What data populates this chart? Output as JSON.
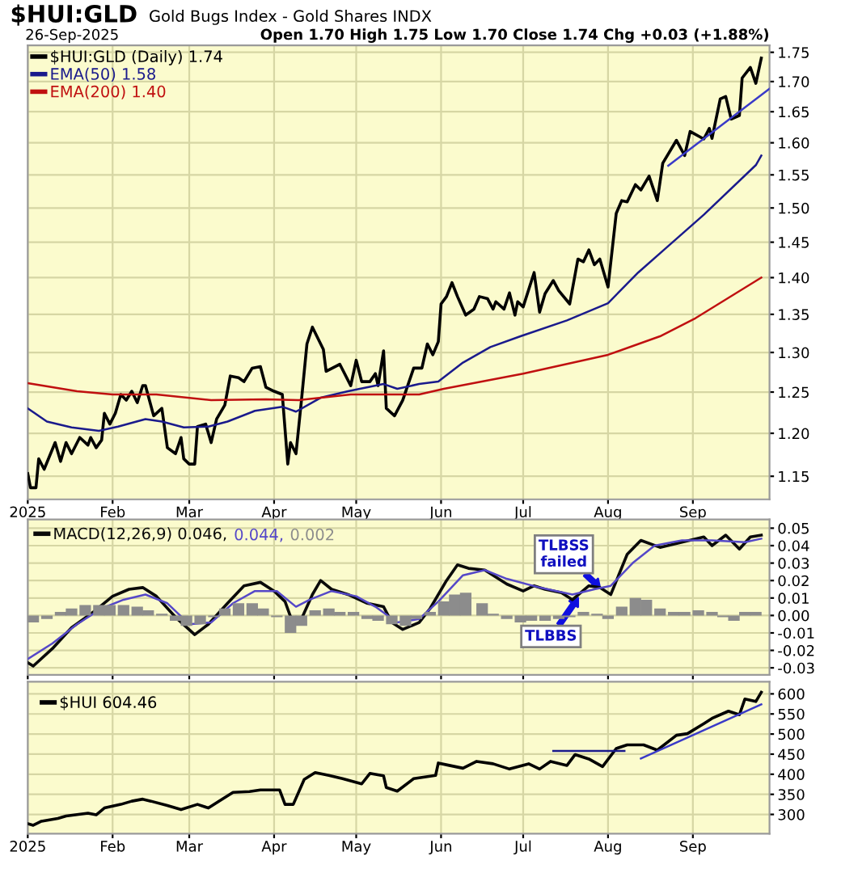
{
  "chart_data": [
    {
      "type": "line",
      "title": "$HUI:GLD",
      "subtitle": "Gold Bugs Index - Gold Shares INDX",
      "annotations": [
        "26-Sep-2025",
        "Open 1.70 High 1.75 Low 1.70 Close 1.74 Chg +0.03 (+1.88%)"
      ],
      "log": "y",
      "grid": true,
      "legend": "top left",
      "xlim": [
        "2025-01-01",
        "2025-09-29"
      ],
      "xticks": [
        {
          "value": "2025-01-01",
          "label": "2025"
        },
        {
          "value": "2025-02-01",
          "label": "Feb"
        },
        {
          "value": "2025-03-01",
          "label": "Mar"
        },
        {
          "value": "2025-04-01",
          "label": "Apr"
        },
        {
          "value": "2025-05-01",
          "label": "May"
        },
        {
          "value": "2025-06-01",
          "label": "Jun"
        },
        {
          "value": "2025-07-01",
          "label": "Jul"
        },
        {
          "value": "2025-08-01",
          "label": "Aug"
        },
        {
          "value": "2025-09-01",
          "label": "Sep"
        }
      ],
      "ylim": [
        1.124,
        1.762
      ],
      "yticks": [
        {
          "value": 1.15,
          "label": "1.15"
        },
        {
          "value": 1.2,
          "label": "1.20"
        },
        {
          "value": 1.25,
          "label": "1.25"
        },
        {
          "value": 1.3,
          "label": "1.30"
        },
        {
          "value": 1.35,
          "label": "1.35"
        },
        {
          "value": 1.4,
          "label": "1.40"
        },
        {
          "value": 1.45,
          "label": "1.45"
        },
        {
          "value": 1.5,
          "label": "1.50"
        },
        {
          "value": 1.55,
          "label": "1.55"
        },
        {
          "value": 1.6,
          "label": "1.60"
        },
        {
          "value": 1.65,
          "label": "1.65"
        },
        {
          "value": 1.7,
          "label": "1.70"
        },
        {
          "value": 1.75,
          "label": "1.75"
        }
      ],
      "series": [
        {
          "name": "$HUI:GLD (Daily) 1.74",
          "color": "#000000",
          "x": [
            "2025-01-01",
            "2025-01-02",
            "2025-01-04",
            "2025-01-05",
            "2025-01-07",
            "2025-01-11",
            "2025-01-13",
            "2025-01-15",
            "2025-01-17",
            "2025-01-20",
            "2025-01-23",
            "2025-01-24",
            "2025-01-26",
            "2025-01-28",
            "2025-01-29",
            "2025-01-31",
            "2025-02-02",
            "2025-02-04",
            "2025-02-06",
            "2025-02-08",
            "2025-02-10",
            "2025-02-12",
            "2025-02-13",
            "2025-02-16",
            "2025-02-19",
            "2025-02-21",
            "2025-02-24",
            "2025-02-26",
            "2025-02-27",
            "2025-03-01",
            "2025-03-03",
            "2025-03-04",
            "2025-03-07",
            "2025-03-09",
            "2025-03-11",
            "2025-03-14",
            "2025-03-16",
            "2025-03-19",
            "2025-03-21",
            "2025-03-24",
            "2025-03-27",
            "2025-03-29",
            "2025-04-01",
            "2025-04-04",
            "2025-04-06",
            "2025-04-07",
            "2025-04-09",
            "2025-04-11",
            "2025-04-13",
            "2025-04-15",
            "2025-04-19",
            "2025-04-20",
            "2025-04-25",
            "2025-04-29",
            "2025-05-01",
            "2025-05-03",
            "2025-05-06",
            "2025-05-08",
            "2025-05-09",
            "2025-05-11",
            "2025-05-12",
            "2025-05-15",
            "2025-05-18",
            "2025-05-22",
            "2025-05-25",
            "2025-05-27",
            "2025-05-29",
            "2025-05-31",
            "2025-06-01",
            "2025-06-03",
            "2025-06-05",
            "2025-06-07",
            "2025-06-10",
            "2025-06-13",
            "2025-06-15",
            "2025-06-18",
            "2025-06-20",
            "2025-06-21",
            "2025-06-24",
            "2025-06-26",
            "2025-06-28",
            "2025-06-29",
            "2025-07-01",
            "2025-07-05",
            "2025-07-07",
            "2025-07-09",
            "2025-07-12",
            "2025-07-14",
            "2025-07-18",
            "2025-07-21",
            "2025-07-23",
            "2025-07-25",
            "2025-07-27",
            "2025-07-29",
            "2025-08-01",
            "2025-08-04",
            "2025-08-06",
            "2025-08-08",
            "2025-08-11",
            "2025-08-13",
            "2025-08-16",
            "2025-08-19",
            "2025-08-21",
            "2025-08-26",
            "2025-08-29",
            "2025-08-31",
            "2025-09-05",
            "2025-09-07",
            "2025-09-08",
            "2025-09-11",
            "2025-09-13",
            "2025-09-15",
            "2025-09-18",
            "2025-09-19",
            "2025-09-22",
            "2025-09-24",
            "2025-09-26"
          ],
          "values": [
            1.153,
            1.137,
            1.137,
            1.17,
            1.158,
            1.189,
            1.167,
            1.189,
            1.176,
            1.195,
            1.186,
            1.195,
            1.183,
            1.192,
            1.224,
            1.211,
            1.224,
            1.247,
            1.24,
            1.251,
            1.237,
            1.258,
            1.258,
            1.221,
            1.23,
            1.183,
            1.176,
            1.195,
            1.17,
            1.164,
            1.164,
            1.208,
            1.211,
            1.189,
            1.217,
            1.234,
            1.27,
            1.268,
            1.263,
            1.28,
            1.282,
            1.256,
            1.251,
            1.247,
            1.164,
            1.189,
            1.176,
            1.24,
            1.311,
            1.333,
            1.304,
            1.276,
            1.285,
            1.258,
            1.29,
            1.263,
            1.263,
            1.273,
            1.258,
            1.302,
            1.23,
            1.221,
            1.24,
            1.28,
            1.28,
            1.311,
            1.297,
            1.314,
            1.364,
            1.374,
            1.393,
            1.374,
            1.349,
            1.357,
            1.374,
            1.371,
            1.357,
            1.367,
            1.357,
            1.379,
            1.349,
            1.367,
            1.36,
            1.407,
            1.353,
            1.378,
            1.396,
            1.382,
            1.364,
            1.426,
            1.422,
            1.439,
            1.418,
            1.426,
            1.387,
            1.492,
            1.511,
            1.509,
            1.535,
            1.527,
            1.548,
            1.511,
            1.568,
            1.604,
            1.58,
            1.618,
            1.606,
            1.623,
            1.607,
            1.671,
            1.675,
            1.638,
            1.644,
            1.706,
            1.724,
            1.697,
            1.74
          ]
        },
        {
          "name": "EMA(50) 1.58",
          "color": "#1a1a8c",
          "x": [
            "2025-01-01",
            "2025-01-08",
            "2025-01-17",
            "2025-01-27",
            "2025-02-03",
            "2025-02-13",
            "2025-02-19",
            "2025-02-27",
            "2025-03-08",
            "2025-03-15",
            "2025-03-25",
            "2025-04-04",
            "2025-04-09",
            "2025-04-18",
            "2025-04-28",
            "2025-05-11",
            "2025-05-16",
            "2025-05-24",
            "2025-05-31",
            "2025-06-09",
            "2025-06-19",
            "2025-06-30",
            "2025-07-17",
            "2025-08-01",
            "2025-08-12",
            "2025-08-22",
            "2025-09-05",
            "2025-09-24",
            "2025-09-26"
          ],
          "values": [
            1.23,
            1.214,
            1.207,
            1.203,
            1.208,
            1.217,
            1.214,
            1.207,
            1.208,
            1.214,
            1.227,
            1.232,
            1.226,
            1.243,
            1.251,
            1.26,
            1.254,
            1.26,
            1.263,
            1.287,
            1.307,
            1.321,
            1.342,
            1.365,
            1.407,
            1.441,
            1.49,
            1.565,
            1.58
          ]
        },
        {
          "name": "EMA(200) 1.40",
          "color": "#c01010",
          "x": [
            "2025-01-01",
            "2025-01-19",
            "2025-02-01",
            "2025-02-17",
            "2025-03-09",
            "2025-03-29",
            "2025-04-10",
            "2025-04-29",
            "2025-05-24",
            "2025-06-02",
            "2025-07-01",
            "2025-08-01",
            "2025-08-20",
            "2025-09-02",
            "2025-09-26"
          ],
          "values": [
            1.261,
            1.251,
            1.247,
            1.247,
            1.24,
            1.241,
            1.24,
            1.247,
            1.247,
            1.254,
            1.273,
            1.297,
            1.321,
            1.345,
            1.4
          ]
        },
        {
          "type": "line",
          "color": "#3a3ac8",
          "x": [
            "2025-08-23",
            "2025-09-29"
          ],
          "values": [
            1.564,
            1.688
          ]
        }
      ]
    },
    {
      "type": "line",
      "grid": true,
      "legend": "top left",
      "tick_labels": "y",
      "xlim": [
        "2025-01-01",
        "2025-09-29"
      ],
      "xticks": [
        {
          "value": "2025-01-01",
          "label": null
        },
        {
          "value": "2025-02-01",
          "label": null
        },
        {
          "value": "2025-03-01",
          "label": null
        },
        {
          "value": "2025-04-01",
          "label": null
        },
        {
          "value": "2025-05-01",
          "label": null
        },
        {
          "value": "2025-06-01",
          "label": null
        },
        {
          "value": "2025-07-01",
          "label": null
        },
        {
          "value": "2025-08-01",
          "label": null
        },
        {
          "value": "2025-09-01",
          "label": null
        }
      ],
      "ylim": [
        -0.034,
        0.055
      ],
      "yticks": [
        {
          "value": -0.03,
          "label": "-0.03"
        },
        {
          "value": -0.02,
          "label": "-0.02"
        },
        {
          "value": -0.01,
          "label": "-0.01"
        },
        {
          "value": 0,
          "label": "0.00"
        },
        {
          "value": 0.01,
          "label": "0.01"
        },
        {
          "value": 0.02,
          "label": "0.02"
        },
        {
          "value": 0.03,
          "label": "0.03"
        },
        {
          "value": 0.04,
          "label": "0.04"
        },
        {
          "value": 0.05,
          "label": "0.05"
        }
      ],
      "annotations": [
        {
          "text": "TLBSS failed",
          "x": "2025-07-29",
          "y": 0.016
        },
        {
          "text": "TLBBS",
          "x": "2025-07-21",
          "y": 0.01
        }
      ],
      "series": [
        {
          "name": "MACD(12,26,9) 0.046,",
          "color": "#0a0a0a",
          "x": [
            "2025-01-01",
            "2025-01-03",
            "2025-01-10",
            "2025-01-17",
            "2025-01-25",
            "2025-02-01",
            "2025-02-07",
            "2025-02-12",
            "2025-02-17",
            "2025-02-24",
            "2025-03-03",
            "2025-03-08",
            "2025-03-15",
            "2025-03-21",
            "2025-03-27",
            "2025-04-01",
            "2025-04-05",
            "2025-04-08",
            "2025-04-11",
            "2025-04-15",
            "2025-04-18",
            "2025-04-22",
            "2025-04-28",
            "2025-05-05",
            "2025-05-11",
            "2025-05-14",
            "2025-05-18",
            "2025-05-24",
            "2025-05-28",
            "2025-06-03",
            "2025-06-07",
            "2025-06-11",
            "2025-06-17",
            "2025-06-25",
            "2025-07-01",
            "2025-07-05",
            "2025-07-09",
            "2025-07-15",
            "2025-07-19",
            "2025-07-25",
            "2025-07-29",
            "2025-08-02",
            "2025-08-08",
            "2025-08-13",
            "2025-08-20",
            "2025-08-28",
            "2025-09-05",
            "2025-09-08",
            "2025-09-13",
            "2025-09-18",
            "2025-09-22",
            "2025-09-26"
          ],
          "values": [
            -0.027,
            -0.029,
            -0.019,
            -0.007,
            0.002,
            0.011,
            0.015,
            0.016,
            0.011,
            -0.001,
            -0.011,
            -0.005,
            0.007,
            0.017,
            0.019,
            0.014,
            0.008,
            -0.005,
            -0.002,
            0.012,
            0.02,
            0.015,
            0.012,
            0.007,
            0.005,
            -0.004,
            -0.008,
            -0.004,
            0.004,
            0.02,
            0.029,
            0.027,
            0.026,
            0.018,
            0.014,
            0.017,
            0.015,
            0.013,
            0.009,
            0.017,
            0.016,
            0.012,
            0.035,
            0.043,
            0.039,
            0.042,
            0.045,
            0.04,
            0.046,
            0.038,
            0.045,
            0.046
          ]
        },
        {
          "name": "0.044,",
          "color": "#5548c8",
          "x": [
            "2025-01-01",
            "2025-01-10",
            "2025-01-19",
            "2025-01-28",
            "2025-02-05",
            "2025-02-13",
            "2025-02-21",
            "2025-03-01",
            "2025-03-09",
            "2025-03-17",
            "2025-03-25",
            "2025-04-02",
            "2025-04-09",
            "2025-04-14",
            "2025-04-22",
            "2025-05-01",
            "2025-05-08",
            "2025-05-16",
            "2025-05-24",
            "2025-05-31",
            "2025-06-09",
            "2025-06-17",
            "2025-06-25",
            "2025-07-07",
            "2025-07-19",
            "2025-07-27",
            "2025-08-02",
            "2025-08-10",
            "2025-08-18",
            "2025-08-28",
            "2025-09-08",
            "2025-09-20",
            "2025-09-26"
          ],
          "values": [
            -0.025,
            -0.016,
            -0.005,
            0.004,
            0.009,
            0.012,
            0.007,
            -0.005,
            -0.004,
            0.007,
            0.014,
            0.014,
            0.005,
            0.009,
            0.014,
            0.011,
            0.005,
            -0.004,
            -0.002,
            0.008,
            0.023,
            0.026,
            0.021,
            0.016,
            0.012,
            0.015,
            0.017,
            0.03,
            0.04,
            0.043,
            0.043,
            0.042,
            0.044
          ]
        },
        {
          "name": "0.002",
          "type": "bar",
          "color": "#8c8c8c",
          "x": [
            "2025-01-03",
            "2025-01-08",
            "2025-01-13",
            "2025-01-17",
            "2025-01-22",
            "2025-01-27",
            "2025-01-31",
            "2025-02-05",
            "2025-02-10",
            "2025-02-14",
            "2025-02-19",
            "2025-02-24",
            "2025-02-28",
            "2025-03-05",
            "2025-03-10",
            "2025-03-14",
            "2025-03-19",
            "2025-03-24",
            "2025-03-28",
            "2025-04-02",
            "2025-04-07",
            "2025-04-11",
            "2025-04-16",
            "2025-04-21",
            "2025-04-25",
            "2025-04-30",
            "2025-05-05",
            "2025-05-09",
            "2025-05-14",
            "2025-05-19",
            "2025-05-23",
            "2025-05-28",
            "2025-06-02",
            "2025-06-06",
            "2025-06-10",
            "2025-06-16",
            "2025-06-20",
            "2025-06-25",
            "2025-06-30",
            "2025-07-04",
            "2025-07-09",
            "2025-07-14",
            "2025-07-18",
            "2025-07-23",
            "2025-07-28",
            "2025-08-01",
            "2025-08-06",
            "2025-08-11",
            "2025-08-15",
            "2025-08-20",
            "2025-08-25",
            "2025-08-29",
            "2025-09-03",
            "2025-09-08",
            "2025-09-12",
            "2025-09-16",
            "2025-09-20",
            "2025-09-24"
          ],
          "values": [
            -0.004,
            -0.002,
            0.002,
            0.004,
            0.006,
            0.006,
            0.006,
            0.006,
            0.005,
            0.003,
            0.001,
            -0.003,
            -0.006,
            -0.005,
            -0.001,
            0.004,
            0.007,
            0.007,
            0.004,
            -0.001,
            -0.01,
            -0.006,
            0.003,
            0.004,
            0.002,
            0.002,
            -0.002,
            -0.003,
            -0.005,
            -0.006,
            -0.002,
            0.002,
            0.008,
            0.012,
            0.013,
            0.007,
            0.001,
            -0.002,
            -0.004,
            -0.003,
            -0.003,
            -0.002,
            -0.001,
            0.002,
            0.001,
            -0.002,
            0.005,
            0.01,
            0.009,
            0.004,
            0.002,
            0.002,
            0.003,
            0.002,
            -0.001,
            -0.003,
            0.002,
            0.002
          ]
        }
      ]
    },
    {
      "type": "line",
      "grid": true,
      "legend": "top left",
      "xlim": [
        "2025-01-01",
        "2025-09-29"
      ],
      "xticks": [
        {
          "value": "2025-01-01",
          "label": "2025"
        },
        {
          "value": "2025-02-01",
          "label": "Feb"
        },
        {
          "value": "2025-03-01",
          "label": "Mar"
        },
        {
          "value": "2025-04-01",
          "label": "Apr"
        },
        {
          "value": "2025-05-01",
          "label": "May"
        },
        {
          "value": "2025-06-01",
          "label": "Jun"
        },
        {
          "value": "2025-07-01",
          "label": "Jul"
        },
        {
          "value": "2025-08-01",
          "label": "Aug"
        },
        {
          "value": "2025-09-01",
          "label": "Sep"
        }
      ],
      "ylim": [
        252,
        630
      ],
      "yticks": [
        300,
        350,
        400,
        450,
        500,
        550,
        600
      ],
      "series": [
        {
          "name": "$HUI 604.46",
          "color": "#000000",
          "x": [
            "2025-01-01",
            "2025-01-03",
            "2025-01-06",
            "2025-01-12",
            "2025-01-15",
            "2025-01-23",
            "2025-01-26",
            "2025-01-29",
            "2025-02-04",
            "2025-02-08",
            "2025-02-12",
            "2025-02-15",
            "2025-02-21",
            "2025-02-26",
            "2025-03-04",
            "2025-03-08",
            "2025-03-13",
            "2025-03-17",
            "2025-03-23",
            "2025-03-27",
            "2025-04-03",
            "2025-04-05",
            "2025-04-08",
            "2025-04-12",
            "2025-04-16",
            "2025-04-21",
            "2025-04-26",
            "2025-05-03",
            "2025-05-06",
            "2025-05-11",
            "2025-05-12",
            "2025-05-16",
            "2025-05-22",
            "2025-05-30",
            "2025-05-31",
            "2025-06-04",
            "2025-06-09",
            "2025-06-14",
            "2025-06-20",
            "2025-06-26",
            "2025-07-03",
            "2025-07-07",
            "2025-07-11",
            "2025-07-17",
            "2025-07-20",
            "2025-07-25",
            "2025-07-30",
            "2025-08-04",
            "2025-08-08",
            "2025-08-14",
            "2025-08-19",
            "2025-08-26",
            "2025-08-30",
            "2025-09-05",
            "2025-09-08",
            "2025-09-14",
            "2025-09-18",
            "2025-09-20",
            "2025-09-24",
            "2025-09-26"
          ],
          "values": [
            277,
            273,
            283,
            290,
            296,
            303,
            299,
            316,
            325,
            333,
            338,
            333,
            322,
            312,
            325,
            316,
            338,
            355,
            357,
            361,
            361,
            325,
            325,
            387,
            404,
            397,
            389,
            376,
            402,
            396,
            367,
            358,
            389,
            397,
            428,
            422,
            415,
            432,
            426,
            413,
            426,
            413,
            432,
            422,
            449,
            438,
            419,
            464,
            473,
            473,
            460,
            497,
            501,
            526,
            539,
            557,
            548,
            587,
            581,
            604
          ]
        },
        {
          "type": "line",
          "color": "#1a1a8c",
          "x": [
            "2025-07-12",
            "2025-08-07"
          ],
          "values": [
            458,
            458
          ]
        },
        {
          "type": "line",
          "color": "#3a3ac8",
          "x": [
            "2025-08-13",
            "2025-09-26"
          ],
          "values": [
            439,
            574
          ]
        }
      ]
    }
  ]
}
